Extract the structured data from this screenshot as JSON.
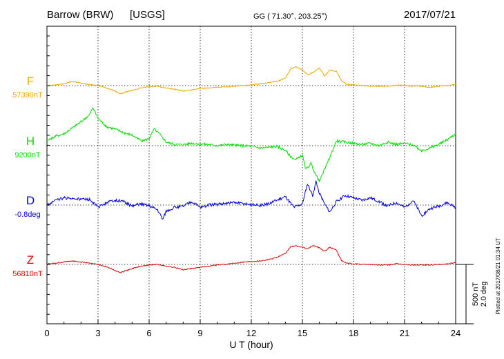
{
  "chart_data": {
    "type": "line",
    "station": "Barrow (BRW)",
    "source": "[USGS]",
    "coords": "GG ( 71.30°, 203.25°)",
    "date": "2017/07/21",
    "xlabel": "U T (hour)",
    "xlim": [
      0,
      24
    ],
    "x_ticks": [
      "0",
      "3",
      "6",
      "9",
      "12",
      "15",
      "18",
      "21",
      "24"
    ],
    "grid": true,
    "scale_label_1": "500 nT",
    "scale_label_2": "2.0 deg",
    "plotted_note": "Plotted at 2017/08/21 01:34 UT",
    "colors": {
      "F": "#f0a800",
      "H": "#00dd00",
      "D": "#0000dd",
      "Z": "#dd0000"
    },
    "series": [
      {
        "name": "F",
        "baseline_label": "57390nT",
        "x": [
          0,
          0.5,
          1,
          1.5,
          2,
          2.5,
          3,
          3.5,
          4,
          4.3,
          4.6,
          5,
          5.5,
          6,
          6.5,
          7,
          7.5,
          8,
          8.5,
          9,
          9.5,
          10,
          10.5,
          11,
          11.5,
          12,
          12.5,
          13,
          13.5,
          14,
          14.3,
          14.6,
          15,
          15.3,
          15.6,
          16,
          16.3,
          16.6,
          17,
          17.3,
          17.6,
          18,
          18.5,
          19,
          19.5,
          20,
          20.5,
          21,
          21.5,
          22,
          22.5,
          23,
          23.5,
          24
        ],
        "values": [
          0,
          5,
          15,
          35,
          20,
          10,
          0,
          -20,
          -45,
          -70,
          -55,
          -40,
          -20,
          -10,
          -5,
          -20,
          -30,
          -45,
          -35,
          -25,
          -20,
          -15,
          -10,
          -5,
          0,
          5,
          15,
          25,
          35,
          60,
          140,
          160,
          135,
          90,
          110,
          150,
          80,
          130,
          120,
          40,
          10,
          5,
          0,
          -5,
          -5,
          -5,
          5,
          0,
          -5,
          -5,
          -15,
          -5,
          0,
          10
        ]
      },
      {
        "name": "H",
        "baseline_label": "9200nT",
        "x": [
          0,
          0.5,
          1,
          1.5,
          2,
          2.5,
          2.7,
          3,
          3.5,
          4,
          4.5,
          5,
          5.3,
          5.6,
          6,
          6.3,
          6.6,
          7,
          7.5,
          8,
          8.5,
          9,
          9.5,
          10,
          10.5,
          11,
          11.5,
          12,
          12.5,
          13,
          13.5,
          14,
          14.3,
          14.6,
          15,
          15.2,
          15.5,
          15.8,
          16,
          16.3,
          16.6,
          17,
          17.5,
          18,
          18.5,
          19,
          19.5,
          20,
          20.5,
          21,
          21.5,
          22,
          22.5,
          23,
          23.5,
          24
        ],
        "values": [
          40,
          80,
          100,
          150,
          200,
          260,
          320,
          230,
          160,
          140,
          110,
          90,
          60,
          40,
          60,
          140,
          100,
          30,
          10,
          10,
          20,
          15,
          10,
          0,
          10,
          5,
          0,
          -5,
          -20,
          -15,
          -5,
          -40,
          -90,
          -120,
          -80,
          -200,
          -150,
          -250,
          -300,
          -200,
          -100,
          40,
          30,
          20,
          10,
          20,
          0,
          30,
          10,
          20,
          5,
          -40,
          -20,
          10,
          50,
          100
        ]
      },
      {
        "name": "D",
        "baseline_label": "-0.8deg",
        "x": [
          0,
          0.5,
          1,
          1.5,
          2,
          2.5,
          3,
          3.5,
          4,
          4.5,
          5,
          5.5,
          6,
          6.5,
          6.8,
          7,
          7.5,
          8,
          8.5,
          9,
          9.5,
          10,
          10.5,
          11,
          11.5,
          12,
          12.5,
          13,
          13.5,
          14,
          14.5,
          15,
          15.3,
          15.6,
          15.8,
          16,
          16.3,
          16.6,
          17,
          17.5,
          18,
          18.5,
          19,
          19.5,
          20,
          20.5,
          21,
          21.5,
          22,
          22.5,
          23,
          23.5,
          24
        ],
        "values": [
          0,
          40,
          60,
          55,
          50,
          45,
          -20,
          20,
          40,
          30,
          -10,
          10,
          -5,
          -40,
          -120,
          -50,
          -20,
          -10,
          30,
          -20,
          0,
          5,
          15,
          20,
          10,
          5,
          -5,
          10,
          40,
          70,
          -20,
          10,
          180,
          80,
          200,
          100,
          10,
          -60,
          30,
          80,
          60,
          40,
          60,
          30,
          -10,
          20,
          -20,
          40,
          -90,
          -30,
          -10,
          20,
          -20
        ]
      },
      {
        "name": "Z",
        "baseline_label": "56810nT",
        "x": [
          0,
          0.5,
          1,
          1.5,
          2,
          2.5,
          3,
          3.5,
          4,
          4.3,
          4.6,
          5,
          5.5,
          6,
          6.5,
          7,
          7.5,
          8,
          8.5,
          9,
          9.5,
          10,
          10.5,
          11,
          11.5,
          12,
          12.5,
          13,
          13.5,
          14,
          14.3,
          14.6,
          15,
          15.3,
          15.6,
          16,
          16.3,
          16.6,
          17,
          17.3,
          17.6,
          18,
          18.5,
          19,
          19.5,
          20,
          20.5,
          21,
          21.5,
          22,
          22.5,
          23,
          23.5,
          24
        ],
        "values": [
          5,
          10,
          20,
          30,
          20,
          10,
          0,
          -20,
          -50,
          -70,
          -55,
          -35,
          -15,
          -5,
          0,
          -15,
          -25,
          -45,
          -35,
          -25,
          -15,
          -5,
          0,
          10,
          20,
          25,
          30,
          40,
          60,
          90,
          150,
          155,
          145,
          130,
          160,
          140,
          110,
          145,
          120,
          30,
          10,
          5,
          0,
          0,
          -5,
          -5,
          5,
          0,
          -5,
          -5,
          -5,
          0,
          5,
          15
        ]
      }
    ]
  }
}
